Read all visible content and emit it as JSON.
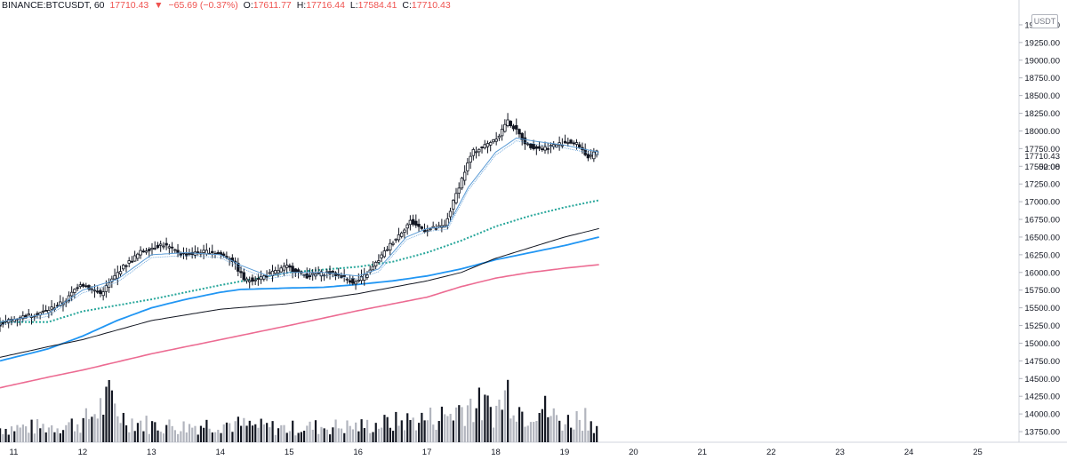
{
  "header": {
    "symbol": "BINANCE:BTCUSDT, 60",
    "last": "17710.43",
    "arrow": "▼",
    "change": "−65.69 (−0.37%)",
    "o_label": "O:",
    "o_value": "17611.77",
    "h_label": "H:",
    "h_value": "17716.44",
    "l_label": "L:",
    "l_value": "17584.41",
    "c_label": "C:",
    "c_value": "17710.43"
  },
  "price_scale": {
    "currency_button": "USDT",
    "last_price_label": "17710.43",
    "countdown_label": "52:08"
  },
  "colors": {
    "candle": "#131722",
    "ema_fast": "#5b9bd5",
    "ema_green": "#26a69a",
    "ma_black": "#131722",
    "ma_blue": "#2196f3",
    "ma_pink": "#ec6b92",
    "volume_dark": "#131722",
    "volume_light": "#b2b5be",
    "negative": "#ef5350"
  },
  "chart_data": {
    "type": "candlestick",
    "interval": "60",
    "x_ticks": [
      "11",
      "12",
      "13",
      "14",
      "15",
      "16",
      "17",
      "18",
      "19",
      "20",
      "21",
      "22",
      "23",
      "24",
      "25"
    ],
    "y_ticks": [
      "13750.00",
      "14000.00",
      "14250.00",
      "14500.00",
      "14750.00",
      "15000.00",
      "15250.00",
      "15500.00",
      "15750.00",
      "16000.00",
      "16250.00",
      "16500.00",
      "16750.00",
      "17000.00",
      "17250.00",
      "17500.00",
      "17750.00",
      "18000.00",
      "18250.00",
      "18500.00",
      "18750.00",
      "19000.00",
      "19250.00",
      "19500.00"
    ],
    "ylim": [
      13600,
      19700
    ],
    "day_range": [
      10.8,
      25.6
    ],
    "price_path": [
      [
        10.8,
        15250
      ],
      [
        11.0,
        15330
      ],
      [
        11.5,
        15450
      ],
      [
        11.8,
        15600
      ],
      [
        12.0,
        15850
      ],
      [
        12.3,
        15700
      ],
      [
        12.6,
        16050
      ],
      [
        12.9,
        16300
      ],
      [
        13.2,
        16400
      ],
      [
        13.5,
        16250
      ],
      [
        13.9,
        16300
      ],
      [
        14.2,
        16200
      ],
      [
        14.4,
        15880
      ],
      [
        14.7,
        15950
      ],
      [
        15.0,
        16080
      ],
      [
        15.3,
        15950
      ],
      [
        15.6,
        16000
      ],
      [
        15.8,
        15950
      ],
      [
        16.0,
        15850
      ],
      [
        16.2,
        16000
      ],
      [
        16.5,
        16380
      ],
      [
        16.8,
        16720
      ],
      [
        17.0,
        16600
      ],
      [
        17.3,
        16650
      ],
      [
        17.5,
        17200
      ],
      [
        17.7,
        17700
      ],
      [
        17.9,
        17800
      ],
      [
        18.1,
        17950
      ],
      [
        18.2,
        18150
      ],
      [
        18.3,
        18050
      ],
      [
        18.5,
        17800
      ],
      [
        18.7,
        17750
      ],
      [
        18.9,
        17800
      ],
      [
        19.1,
        17850
      ],
      [
        19.25,
        17800
      ],
      [
        19.4,
        17600
      ],
      [
        19.5,
        17710
      ]
    ],
    "ema_fast_path": [
      [
        10.8,
        15300
      ],
      [
        11.5,
        15420
      ],
      [
        12.0,
        15750
      ],
      [
        12.5,
        15900
      ],
      [
        13.0,
        16250
      ],
      [
        13.5,
        16280
      ],
      [
        14.0,
        16250
      ],
      [
        14.3,
        16100
      ],
      [
        14.7,
        15950
      ],
      [
        15.0,
        16000
      ],
      [
        15.5,
        16000
      ],
      [
        16.0,
        15950
      ],
      [
        16.3,
        16050
      ],
      [
        16.7,
        16500
      ],
      [
        17.0,
        16620
      ],
      [
        17.3,
        16650
      ],
      [
        17.6,
        17200
      ],
      [
        18.0,
        17700
      ],
      [
        18.3,
        17900
      ],
      [
        18.6,
        17850
      ],
      [
        19.0,
        17800
      ],
      [
        19.5,
        17700
      ]
    ],
    "ma_green_path": [
      [
        10.8,
        15300
      ],
      [
        11.5,
        15300
      ],
      [
        12.0,
        15450
      ],
      [
        13.0,
        15620
      ],
      [
        14.0,
        15820
      ],
      [
        15.0,
        16000
      ],
      [
        16.0,
        16080
      ],
      [
        16.5,
        16150
      ],
      [
        17.0,
        16280
      ],
      [
        17.5,
        16450
      ],
      [
        18.0,
        16650
      ],
      [
        18.5,
        16800
      ],
      [
        19.0,
        16920
      ],
      [
        19.5,
        17020
      ]
    ],
    "ma_black_path": [
      [
        10.8,
        14800
      ],
      [
        11.5,
        14950
      ],
      [
        12.0,
        15050
      ],
      [
        13.0,
        15320
      ],
      [
        14.0,
        15480
      ],
      [
        15.0,
        15560
      ],
      [
        16.0,
        15700
      ],
      [
        17.0,
        15880
      ],
      [
        17.5,
        16000
      ],
      [
        18.0,
        16200
      ],
      [
        18.5,
        16350
      ],
      [
        19.0,
        16500
      ],
      [
        19.5,
        16620
      ]
    ],
    "ma_blue_path": [
      [
        10.8,
        14750
      ],
      [
        11.5,
        14920
      ],
      [
        12.0,
        15100
      ],
      [
        12.5,
        15320
      ],
      [
        13.0,
        15500
      ],
      [
        13.5,
        15620
      ],
      [
        14.0,
        15720
      ],
      [
        14.3,
        15760
      ],
      [
        15.0,
        15780
      ],
      [
        15.5,
        15790
      ],
      [
        16.0,
        15830
      ],
      [
        16.5,
        15880
      ],
      [
        17.0,
        15950
      ],
      [
        17.5,
        16050
      ],
      [
        18.0,
        16180
      ],
      [
        18.5,
        16280
      ],
      [
        19.0,
        16380
      ],
      [
        19.5,
        16500
      ]
    ],
    "ma_pink_path": [
      [
        10.8,
        14370
      ],
      [
        11.5,
        14520
      ],
      [
        12.0,
        14620
      ],
      [
        13.0,
        14850
      ],
      [
        14.0,
        15050
      ],
      [
        15.0,
        15250
      ],
      [
        16.0,
        15460
      ],
      [
        17.0,
        15650
      ],
      [
        17.5,
        15800
      ],
      [
        18.0,
        15920
      ],
      [
        18.5,
        16000
      ],
      [
        19.0,
        16060
      ],
      [
        19.5,
        16110
      ]
    ],
    "volume_profile": [
      [
        10.8,
        0.18
      ],
      [
        11.5,
        0.2
      ],
      [
        12.0,
        0.25
      ],
      [
        12.4,
        0.55
      ],
      [
        12.6,
        0.3
      ],
      [
        13.0,
        0.22
      ],
      [
        13.5,
        0.2
      ],
      [
        14.0,
        0.25
      ],
      [
        14.5,
        0.2
      ],
      [
        15.0,
        0.18
      ],
      [
        15.5,
        0.2
      ],
      [
        16.0,
        0.2
      ],
      [
        16.5,
        0.25
      ],
      [
        17.0,
        0.3
      ],
      [
        17.3,
        0.35
      ],
      [
        17.6,
        0.5
      ],
      [
        17.8,
        0.45
      ],
      [
        18.0,
        0.4
      ],
      [
        18.2,
        0.7
      ],
      [
        18.4,
        0.35
      ],
      [
        18.6,
        0.5
      ],
      [
        18.8,
        0.35
      ],
      [
        19.0,
        0.25
      ],
      [
        19.3,
        0.35
      ],
      [
        19.5,
        0.2
      ]
    ]
  }
}
